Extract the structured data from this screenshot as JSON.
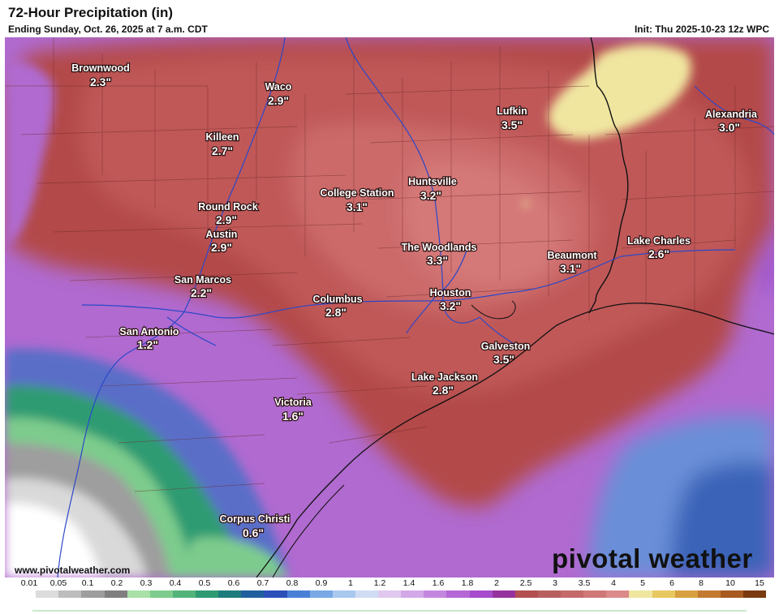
{
  "header": {
    "title": "72-Hour Precipitation (in)",
    "subtitle": "Ending Sunday, Oct. 26, 2025 at 7 a.m. CDT",
    "init": "Init: Thu 2025-10-23 12z WPC"
  },
  "footer": {
    "credit": "www.pivotalweather.com",
    "brand": "pivotal weather"
  },
  "cities": [
    {
      "name": "Brownwood",
      "value": "2.3\""
    },
    {
      "name": "Waco",
      "value": "2.9\""
    },
    {
      "name": "Killeen",
      "value": "2.7\""
    },
    {
      "name": "Lufkin",
      "value": "3.5\""
    },
    {
      "name": "Alexandria",
      "value": "3.0\""
    },
    {
      "name": "Huntsville",
      "value": "3.2\""
    },
    {
      "name": "College Station",
      "value": "3.1\""
    },
    {
      "name": "Round Rock",
      "value": "2.9\""
    },
    {
      "name": "Austin",
      "value": "2.9\""
    },
    {
      "name": "The Woodlands",
      "value": "3.3\""
    },
    {
      "name": "Beaumont",
      "value": "3.1\""
    },
    {
      "name": "Lake Charles",
      "value": "2.6\""
    },
    {
      "name": "San Marcos",
      "value": "2.2\""
    },
    {
      "name": "Columbus",
      "value": "2.8\""
    },
    {
      "name": "Houston",
      "value": "3.2\""
    },
    {
      "name": "San Antonio",
      "value": "1.2\""
    },
    {
      "name": "Galveston",
      "value": "3.5\""
    },
    {
      "name": "Lake Jackson",
      "value": "2.8\""
    },
    {
      "name": "Victoria",
      "value": "1.6\""
    },
    {
      "name": "Corpus Christi",
      "value": "0.6\""
    }
  ],
  "legend": {
    "labels": [
      "0.01",
      "0.05",
      "0.1",
      "0.2",
      "0.3",
      "0.4",
      "0.5",
      "0.6",
      "0.7",
      "0.8",
      "0.9",
      "1",
      "1.2",
      "1.4",
      "1.6",
      "1.8",
      "2",
      "2.5",
      "3",
      "3.5",
      "4",
      "5",
      "6",
      "8",
      "10",
      "15"
    ],
    "colors": [
      "#ffffff",
      "#dcdcdc",
      "#bdbdbd",
      "#9e9e9e",
      "#7f7f7f",
      "#a8e0a8",
      "#7dcc8d",
      "#52b47a",
      "#2e9b72",
      "#1f7c7c",
      "#1f5f9e",
      "#2b4fb8",
      "#4a7fd6",
      "#79a8e4",
      "#a9c8ee",
      "#cfdcf3",
      "#e0c8ee",
      "#d3a8e8",
      "#c487e0",
      "#b567d6",
      "#a64bcc",
      "#96329e",
      "#b35050",
      "#b86060",
      "#c46a6a",
      "#d07878",
      "#dc8a8a",
      "#f0e6a0",
      "#e8c860",
      "#d8a040",
      "#c47a30",
      "#a85a20",
      "#7a3a10"
    ]
  }
}
